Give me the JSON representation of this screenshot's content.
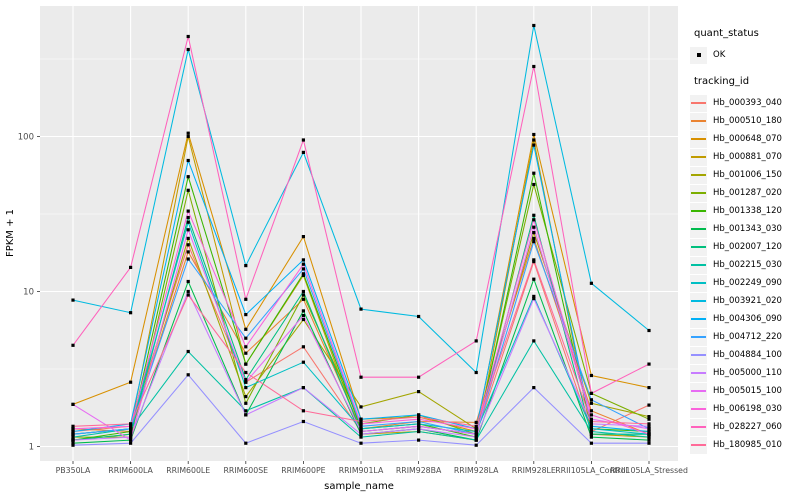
{
  "chart_data": {
    "type": "line",
    "title": "",
    "xlabel": "sample_name",
    "ylabel": "FPKM + 1",
    "y_scale": "log10",
    "ylim": [
      0.85,
      700
    ],
    "y_ticks": [
      1,
      10,
      100
    ],
    "y_minor_ticks": [
      3.162,
      31.62,
      316.2
    ],
    "grid": "on",
    "legend_position": "right",
    "marker": "small black square (quant_status OK)",
    "categories": [
      "PB350LA",
      "RRIM600LA",
      "RRIM600LE",
      "RRIM600SE",
      "RRIM600PE",
      "RRIM901LA",
      "RRIM928BA",
      "RRIM928LA",
      "RRIM928LE",
      "RRII105LA_Control",
      "RRII105LA_Stressed"
    ],
    "series": [
      {
        "name": "Hb_000393_040",
        "color": "#F8766D",
        "values": [
          1.25,
          1.35,
          20,
          2.6,
          4.4,
          1.25,
          1.35,
          1.2,
          15.6,
          1.25,
          1.85
        ]
      },
      {
        "name": "Hb_000510_180",
        "color": "#EA8331",
        "values": [
          1.3,
          1.25,
          18,
          4.0,
          8.9,
          1.3,
          1.45,
          1.43,
          22,
          1.7,
          1.2
        ]
      },
      {
        "name": "Hb_000648_070",
        "color": "#D89000",
        "values": [
          1.87,
          2.6,
          105,
          5.7,
          22.6,
          1.5,
          1.55,
          1.25,
          103,
          2.87,
          2.4
        ]
      },
      {
        "name": "Hb_000881_070",
        "color": "#C09B00",
        "values": [
          1.2,
          1.3,
          100,
          3.4,
          12.7,
          1.2,
          1.25,
          1.1,
          95,
          1.2,
          1.15
        ]
      },
      {
        "name": "Hb_001006_150",
        "color": "#A3A500",
        "values": [
          1.1,
          1.2,
          22,
          2.1,
          6.6,
          1.8,
          2.26,
          1.3,
          24,
          1.9,
          1.56
        ]
      },
      {
        "name": "Hb_001287_020",
        "color": "#7CAE00",
        "values": [
          1.15,
          1.15,
          45,
          1.9,
          9.5,
          1.4,
          1.6,
          1.2,
          49,
          2.2,
          1.5
        ]
      },
      {
        "name": "Hb_001338_120",
        "color": "#39B600",
        "values": [
          1.1,
          1.25,
          55,
          3.4,
          13,
          1.3,
          1.4,
          1.15,
          58,
          1.3,
          1.25
        ]
      },
      {
        "name": "Hb_001343_030",
        "color": "#00BB4E",
        "values": [
          1.05,
          1.1,
          11.6,
          1.6,
          7.5,
          1.2,
          1.3,
          1.1,
          12,
          1.15,
          1.1
        ]
      },
      {
        "name": "Hb_002007_120",
        "color": "#00BF7D",
        "values": [
          1.1,
          1.2,
          30,
          2.7,
          10,
          1.25,
          1.35,
          1.2,
          31,
          1.2,
          1.2
        ]
      },
      {
        "name": "Hb_002215_030",
        "color": "#00C1A3",
        "values": [
          1.15,
          1.3,
          4.1,
          1.7,
          2.4,
          1.15,
          1.25,
          1.1,
          4.8,
          1.25,
          1.15
        ]
      },
      {
        "name": "Hb_002249_090",
        "color": "#00BFC4",
        "values": [
          1.2,
          1.3,
          28,
          2.4,
          3.5,
          1.3,
          1.4,
          1.25,
          9.3,
          1.3,
          1.2
        ]
      },
      {
        "name": "Hb_003921_020",
        "color": "#00BAE0",
        "values": [
          8.8,
          7.3,
          364,
          14.7,
          79,
          7.7,
          6.9,
          3.0,
          520,
          11.3,
          5.6
        ]
      },
      {
        "name": "Hb_004306_090",
        "color": "#00B0F6",
        "values": [
          1.25,
          1.4,
          70,
          7.1,
          16,
          1.5,
          1.6,
          1.3,
          88,
          1.35,
          1.25
        ]
      },
      {
        "name": "Hb_004712_220",
        "color": "#35A2FF",
        "values": [
          1.2,
          1.3,
          16.2,
          5.0,
          14,
          1.35,
          1.45,
          1.2,
          21,
          2.0,
          1.3
        ]
      },
      {
        "name": "Hb_004884_100",
        "color": "#9590FF",
        "values": [
          1.02,
          1.05,
          2.9,
          1.05,
          1.45,
          1.05,
          1.1,
          1.02,
          2.4,
          1.05,
          1.05
        ]
      },
      {
        "name": "Hb_005000_110",
        "color": "#C77CFF",
        "values": [
          1.1,
          1.15,
          10,
          1.6,
          2.4,
          1.2,
          1.3,
          1.15,
          9.0,
          1.4,
          1.35
        ]
      },
      {
        "name": "Hb_005015_100",
        "color": "#E76BF3",
        "values": [
          1.87,
          1.1,
          25,
          2.6,
          7.0,
          1.25,
          1.35,
          1.2,
          26,
          1.5,
          1.3
        ]
      },
      {
        "name": "Hb_006198_030",
        "color": "#FA62DB",
        "values": [
          1.3,
          1.35,
          33,
          4.4,
          15,
          1.4,
          1.5,
          1.3,
          29,
          1.6,
          1.2
        ]
      },
      {
        "name": "Hb_028227_060",
        "color": "#FF62BC",
        "values": [
          4.5,
          14.3,
          442,
          8.9,
          95,
          2.8,
          2.8,
          4.8,
          283,
          2.2,
          3.4
        ]
      },
      {
        "name": "Hb_180985_010",
        "color": "#FF6A98",
        "values": [
          1.35,
          1.4,
          9.5,
          3.0,
          1.7,
          1.45,
          1.55,
          1.35,
          16,
          1.45,
          1.4
        ]
      }
    ]
  },
  "legend": {
    "quant_status_title": "quant_status",
    "quant_status_items": [
      {
        "label": "OK"
      }
    ],
    "tracking_id_title": "tracking_id"
  },
  "colors": {
    "panel_bg": "#EBEBEB",
    "grid": "#FFFFFF",
    "legend_key_bg": "#F2F2F2",
    "tick_label": "#4D4D4D",
    "axis_title": "#000000",
    "point": "#000000"
  }
}
